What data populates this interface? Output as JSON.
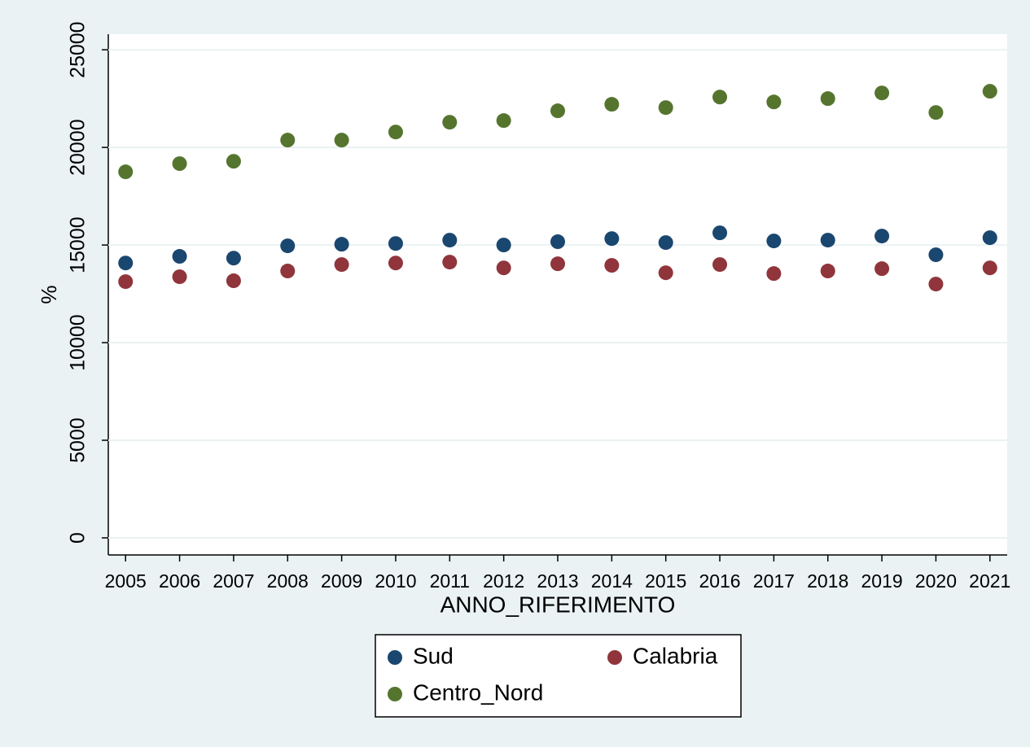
{
  "chart_data": {
    "type": "scatter",
    "xlabel": "ANNO_RIFERIMENTO",
    "ylabel": "%",
    "x": [
      2005,
      2006,
      2007,
      2008,
      2009,
      2010,
      2011,
      2012,
      2013,
      2014,
      2015,
      2016,
      2017,
      2018,
      2019,
      2020,
      2021
    ],
    "series": [
      {
        "name": "Sud",
        "color": "#1a476f",
        "values": [
          14080,
          14420,
          14330,
          14960,
          15040,
          15080,
          15250,
          15000,
          15170,
          15330,
          15125,
          15625,
          15210,
          15250,
          15460,
          14500,
          15375
        ]
      },
      {
        "name": "Calabria",
        "color": "#90353b",
        "values": [
          13125,
          13375,
          13170,
          13670,
          14000,
          14080,
          14125,
          13830,
          14040,
          13960,
          13580,
          14000,
          13540,
          13670,
          13790,
          13000,
          13830
        ]
      },
      {
        "name": "Centro_Nord",
        "color": "#55752f",
        "values": [
          18750,
          19170,
          19290,
          20375,
          20375,
          20790,
          21290,
          21375,
          21875,
          22210,
          22040,
          22580,
          22330,
          22500,
          22790,
          21790,
          22875
        ]
      }
    ],
    "xlim": [
      2004.68,
      2021.32
    ],
    "xticks": [
      2005,
      2006,
      2007,
      2008,
      2009,
      2010,
      2011,
      2012,
      2013,
      2014,
      2015,
      2016,
      2017,
      2018,
      2019,
      2020,
      2021
    ],
    "ylim": [
      -875,
      25800
    ],
    "yticks": [
      0,
      5000,
      10000,
      15000,
      20000,
      25000
    ],
    "grid": true,
    "legend": "bottom"
  }
}
